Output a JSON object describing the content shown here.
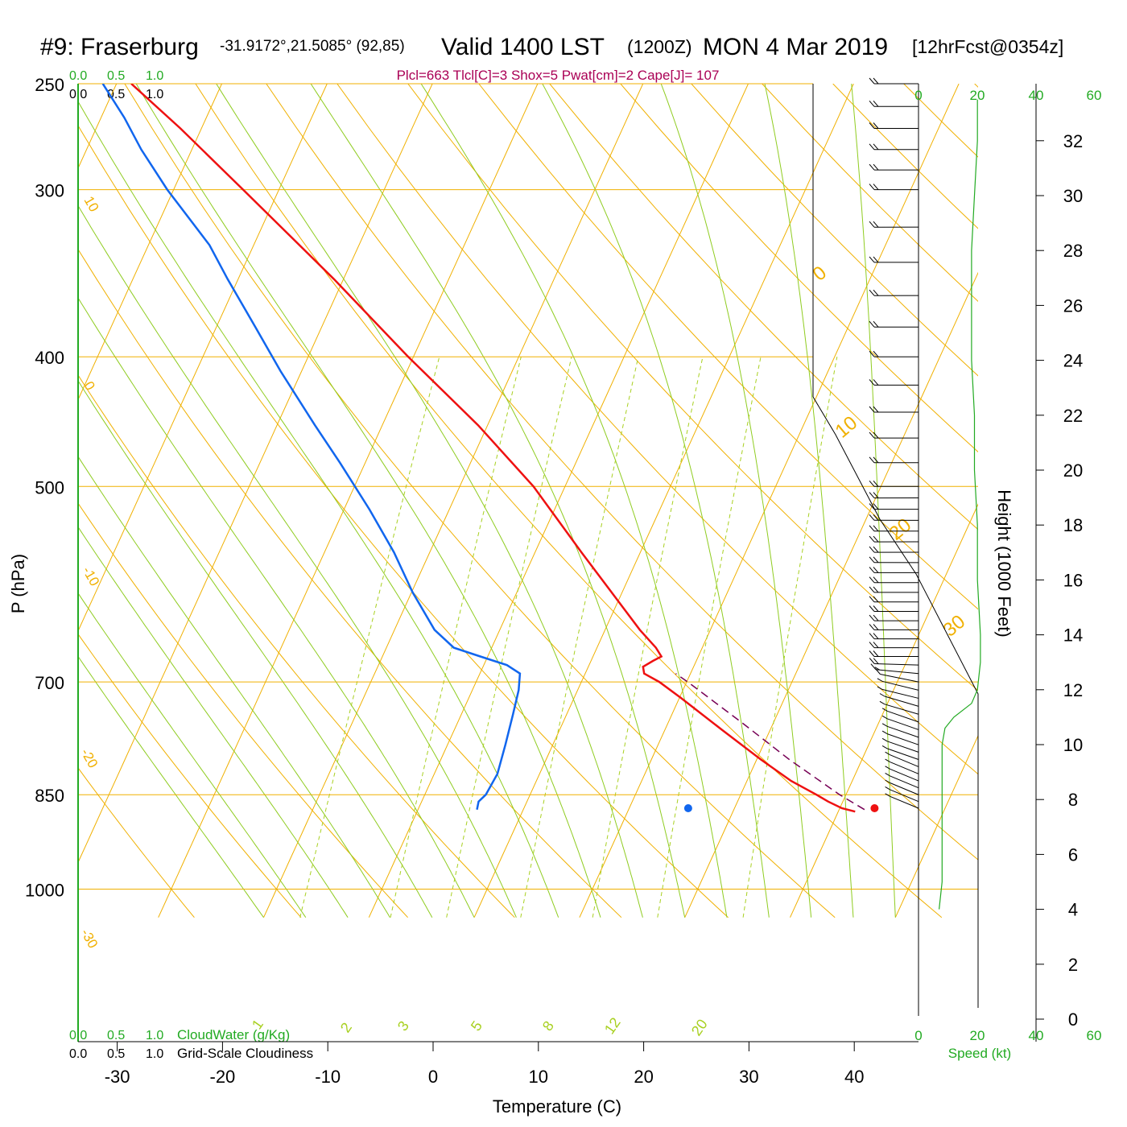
{
  "header": {
    "station": "#9: Fraserburg",
    "coords": "-31.9172°,21.5085° (92,85)",
    "valid": "Valid 1400 LST",
    "zulu": "(1200Z)",
    "date": "MON 4 Mar 2019",
    "forecast": "[12hrFcst@0354z]",
    "params": "Plcl=663 Tlcl[C]=3 Shox=5 Pwat[cm]=2 Cape[J]= 107"
  },
  "labels": {
    "xlabel": "Temperature (C)",
    "ylabel": "P (hPa)",
    "height_label": "Height (1000 Feet)",
    "speed_label": "Speed (kt)",
    "cloudwater_label": "CloudWater (g/Kg)",
    "cloudiness_label": "Grid-Scale Cloudiness"
  },
  "cloud_scale": {
    "cloudwater_ticks": [
      "0.0",
      "0.5",
      "1.0"
    ],
    "cloudiness_ticks": [
      "0.0",
      "0.5",
      "1.0"
    ]
  },
  "colors": {
    "temperature": "#ee1111",
    "dewpoint": "#1166ee",
    "parcel": "#770055",
    "isobar": "#f0b000",
    "isotherm": "#f0b000",
    "dry_adiabat": "#f0b000",
    "moist_adiabat": "#8fcc20",
    "mixing_ratio": "#a8d020",
    "green_text": "#22aa22",
    "params_text": "#aa0055"
  },
  "chart_data": {
    "type": "line",
    "subtype": "skew-T log-P sounding",
    "xlim": [
      -34,
      47
    ],
    "ylim": [
      1050,
      250
    ],
    "x_ticks": [
      "-30",
      "-20",
      "-10",
      "0",
      "10",
      "20",
      "30",
      "40"
    ],
    "y_ticks": [
      "250",
      "300",
      "400",
      "500",
      "700",
      "850",
      "1000"
    ],
    "isotherm_labels": [
      "10",
      "0",
      "-10",
      "-20",
      "-30",
      "0",
      "10",
      "20",
      "30"
    ],
    "mixing_ratio_labels": [
      "1",
      "2",
      "3",
      "5",
      "8",
      "12",
      "20"
    ],
    "temperature": {
      "p": [
        875,
        870,
        860,
        850,
        830,
        800,
        760,
        720,
        700,
        690,
        682,
        675,
        670,
        660,
        640,
        600,
        560,
        500,
        450,
        400,
        350,
        300,
        270,
        250
      ],
      "t": [
        31.6,
        30.2,
        28.6,
        27.2,
        24.2,
        20.4,
        15.4,
        10.2,
        7.4,
        5.6,
        5.2,
        5.9,
        6.5,
        5.6,
        3.3,
        -1.0,
        -5.6,
        -13.0,
        -20.9,
        -30.5,
        -40.9,
        -53.4,
        -62.0,
        -68.6
      ]
    },
    "dewpoint": {
      "p": [
        872,
        860,
        850,
        820,
        780,
        740,
        710,
        690,
        680,
        670,
        660,
        640,
        600,
        560,
        520,
        480,
        450,
        410,
        380,
        350,
        330,
        300,
        280,
        265,
        250
      ],
      "td": [
        -4.4,
        -4.6,
        -4.2,
        -4.0,
        -4.5,
        -5.1,
        -5.6,
        -6.2,
        -7.8,
        -10.7,
        -13.6,
        -16.2,
        -19.9,
        -23.4,
        -27.6,
        -32.4,
        -36.4,
        -42.0,
        -46.3,
        -51.0,
        -54.2,
        -60.6,
        -64.8,
        -67.8,
        -71.3
      ]
    },
    "surface": {
      "p": 870,
      "t": 33.3,
      "td": 15.6
    },
    "parcel": {
      "p": [
        872,
        850,
        800,
        750,
        700,
        690
      ],
      "t": [
        32.4,
        29.4,
        23.1,
        16.9,
        10.1,
        8.6
      ]
    },
    "height_axis": {
      "label": "Height (1000 Feet)",
      "ticks": [
        0,
        2,
        4,
        6,
        8,
        10,
        12,
        14,
        16,
        18,
        20,
        22,
        24,
        26,
        28,
        30,
        32
      ]
    },
    "speed_axis": {
      "label": "Speed (kt)",
      "ticks": [
        "0",
        "20",
        "40",
        "60"
      ],
      "range": [
        0,
        60
      ]
    },
    "wind_speed_profile": {
      "height_kft": [
        4.0,
        5.0,
        6.0,
        7.0,
        8.0,
        9.0,
        10.0,
        10.6,
        11.0,
        11.5,
        12.0,
        13.0,
        14.0,
        16.0,
        18.0,
        20.0,
        22.0,
        24.0,
        26.0,
        28.0,
        30.0,
        32.0,
        33.5
      ],
      "speed_kt": [
        7,
        8,
        8,
        8,
        8,
        8,
        8,
        9,
        12,
        18,
        20,
        21,
        21,
        20,
        20,
        19,
        19,
        18,
        18,
        18,
        19,
        20,
        20
      ]
    },
    "wind_barbs": {
      "p": [
        870,
        860,
        850,
        840,
        830,
        820,
        810,
        800,
        790,
        780,
        770,
        760,
        750,
        740,
        730,
        720,
        710,
        700,
        690,
        680,
        670,
        660,
        650,
        640,
        630,
        620,
        610,
        600,
        590,
        580,
        570,
        560,
        550,
        540,
        530,
        520,
        510,
        500,
        480,
        460,
        440,
        420,
        400,
        380,
        360,
        340,
        320,
        300,
        290,
        280,
        270,
        260,
        250
      ],
      "speed_kt": [
        5,
        5,
        5,
        5,
        5,
        5,
        5,
        5,
        5,
        5,
        5,
        5,
        5,
        5,
        5,
        5,
        5,
        10,
        15,
        20,
        20,
        20,
        20,
        20,
        20,
        20,
        20,
        20,
        20,
        20,
        20,
        20,
        20,
        20,
        20,
        20,
        20,
        20,
        20,
        20,
        20,
        20,
        20,
        20,
        20,
        20,
        20,
        20,
        20,
        20,
        20,
        20,
        20
      ],
      "dir_deg": [
        40,
        40,
        40,
        40,
        40,
        40,
        40,
        45,
        45,
        45,
        45,
        45,
        45,
        50,
        50,
        55,
        55,
        60,
        75,
        85,
        90,
        90,
        90,
        90,
        90,
        90,
        90,
        90,
        90,
        90,
        90,
        90,
        90,
        90,
        90,
        90,
        90,
        90,
        90,
        90,
        90,
        90,
        90,
        90,
        90,
        90,
        90,
        90,
        90,
        90,
        90,
        90,
        90
      ]
    }
  }
}
